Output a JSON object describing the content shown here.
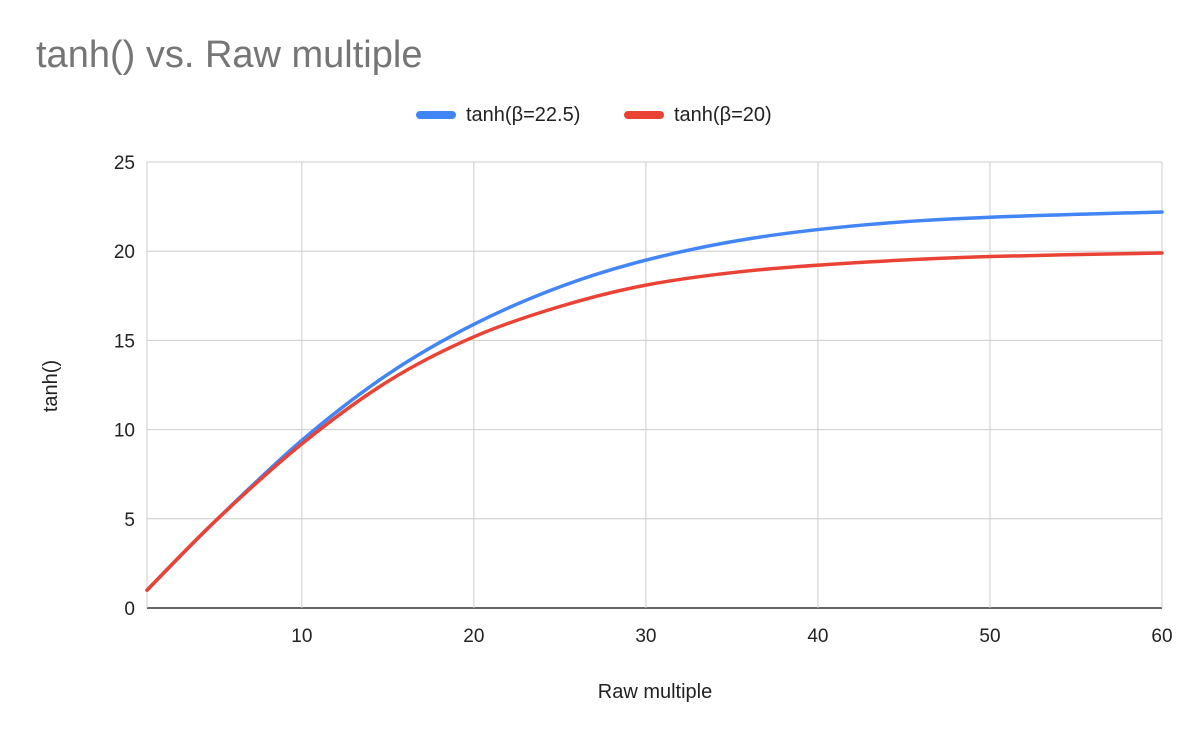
{
  "chart_data": {
    "type": "line",
    "title": "tanh() vs. Raw multiple",
    "xlabel": "Raw multiple",
    "ylabel": "tanh()",
    "xlim": [
      1,
      60
    ],
    "ylim": [
      0,
      25
    ],
    "x_ticks": [
      10,
      20,
      30,
      40,
      50,
      60
    ],
    "y_ticks": [
      0,
      5,
      10,
      15,
      20,
      25
    ],
    "grid": true,
    "legend_position": "top-center",
    "series": [
      {
        "name": "tanh(β=22.5)",
        "color": "#4285f4",
        "x": [
          1,
          5,
          10,
          15,
          20,
          25,
          30,
          36,
          43,
          50,
          60
        ],
        "y": [
          1.0,
          4.9,
          9.4,
          13.1,
          15.9,
          18.0,
          19.5,
          20.7,
          21.5,
          21.9,
          22.2
        ]
      },
      {
        "name": "tanh(β=20)",
        "color": "#ea4335",
        "x": [
          1,
          5,
          10,
          15,
          20,
          25,
          30,
          36,
          43,
          50,
          60
        ],
        "y": [
          1.0,
          4.9,
          9.2,
          12.7,
          15.2,
          16.9,
          18.1,
          18.9,
          19.4,
          19.7,
          19.9
        ]
      }
    ]
  }
}
